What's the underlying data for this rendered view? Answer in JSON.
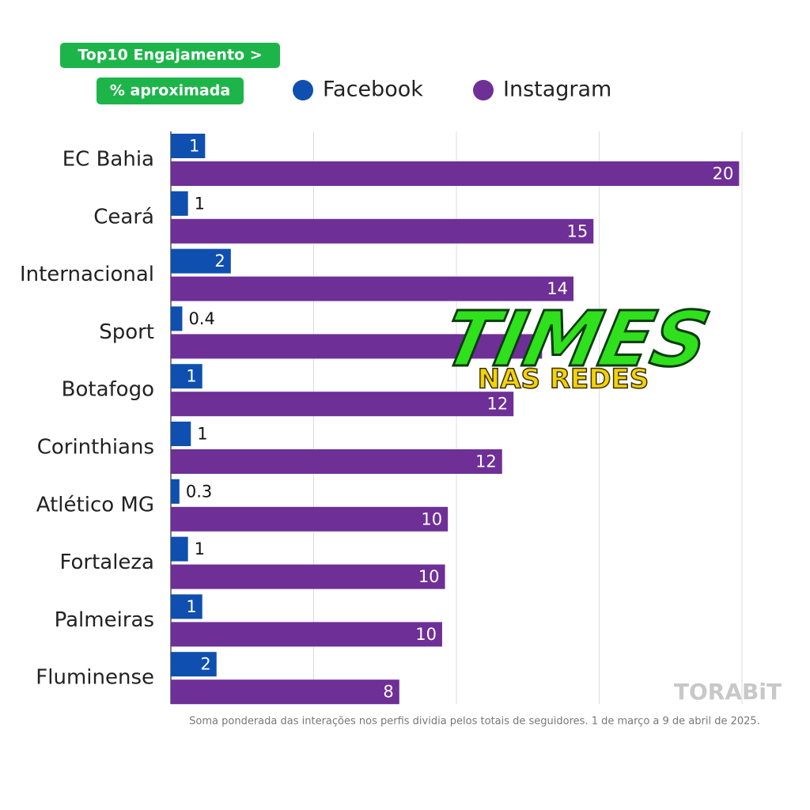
{
  "chart_data": {
    "type": "grouped-hbar",
    "title": "Top10 Engajamento >",
    "subtitle": "% aproximada",
    "categories": [
      "EC Bahia",
      "Ceará",
      "Internacional",
      "Sport",
      "Botafogo",
      "Corinthians",
      "Atlético MG",
      "Fortaleza",
      "Palmeiras",
      "Fluminense"
    ],
    "series": [
      {
        "name": "Facebook",
        "color": "#0f4fb0",
        "values": [
          1.2,
          0.6,
          2.1,
          0.4,
          1.1,
          0.7,
          0.3,
          0.6,
          1.1,
          1.6
        ],
        "value_labels": [
          "1",
          "1",
          "2",
          "0.4",
          "1",
          "1",
          "0.3",
          "1",
          "1",
          "2"
        ]
      },
      {
        "name": "Instagram",
        "color": "#6e2f96",
        "values": [
          19.9,
          14.8,
          14.1,
          13,
          12.0,
          11.6,
          9.7,
          9.6,
          9.5,
          8.0
        ],
        "value_labels": [
          "20",
          "15",
          "14",
          null,
          "12",
          "12",
          "10",
          "10",
          "10",
          "8"
        ]
      }
    ],
    "xlim": [
      0,
      20
    ],
    "xticks": [
      5,
      10,
      15,
      20
    ],
    "grid": true,
    "note": "Soma ponderada das interações nos perfis dividia pelos totais de seguidores. 1 de março a 9 de abril de 2025.",
    "watermark": "TORABiT",
    "overlay": {
      "line1": "TIMES",
      "line2": "NAS REDES"
    }
  }
}
